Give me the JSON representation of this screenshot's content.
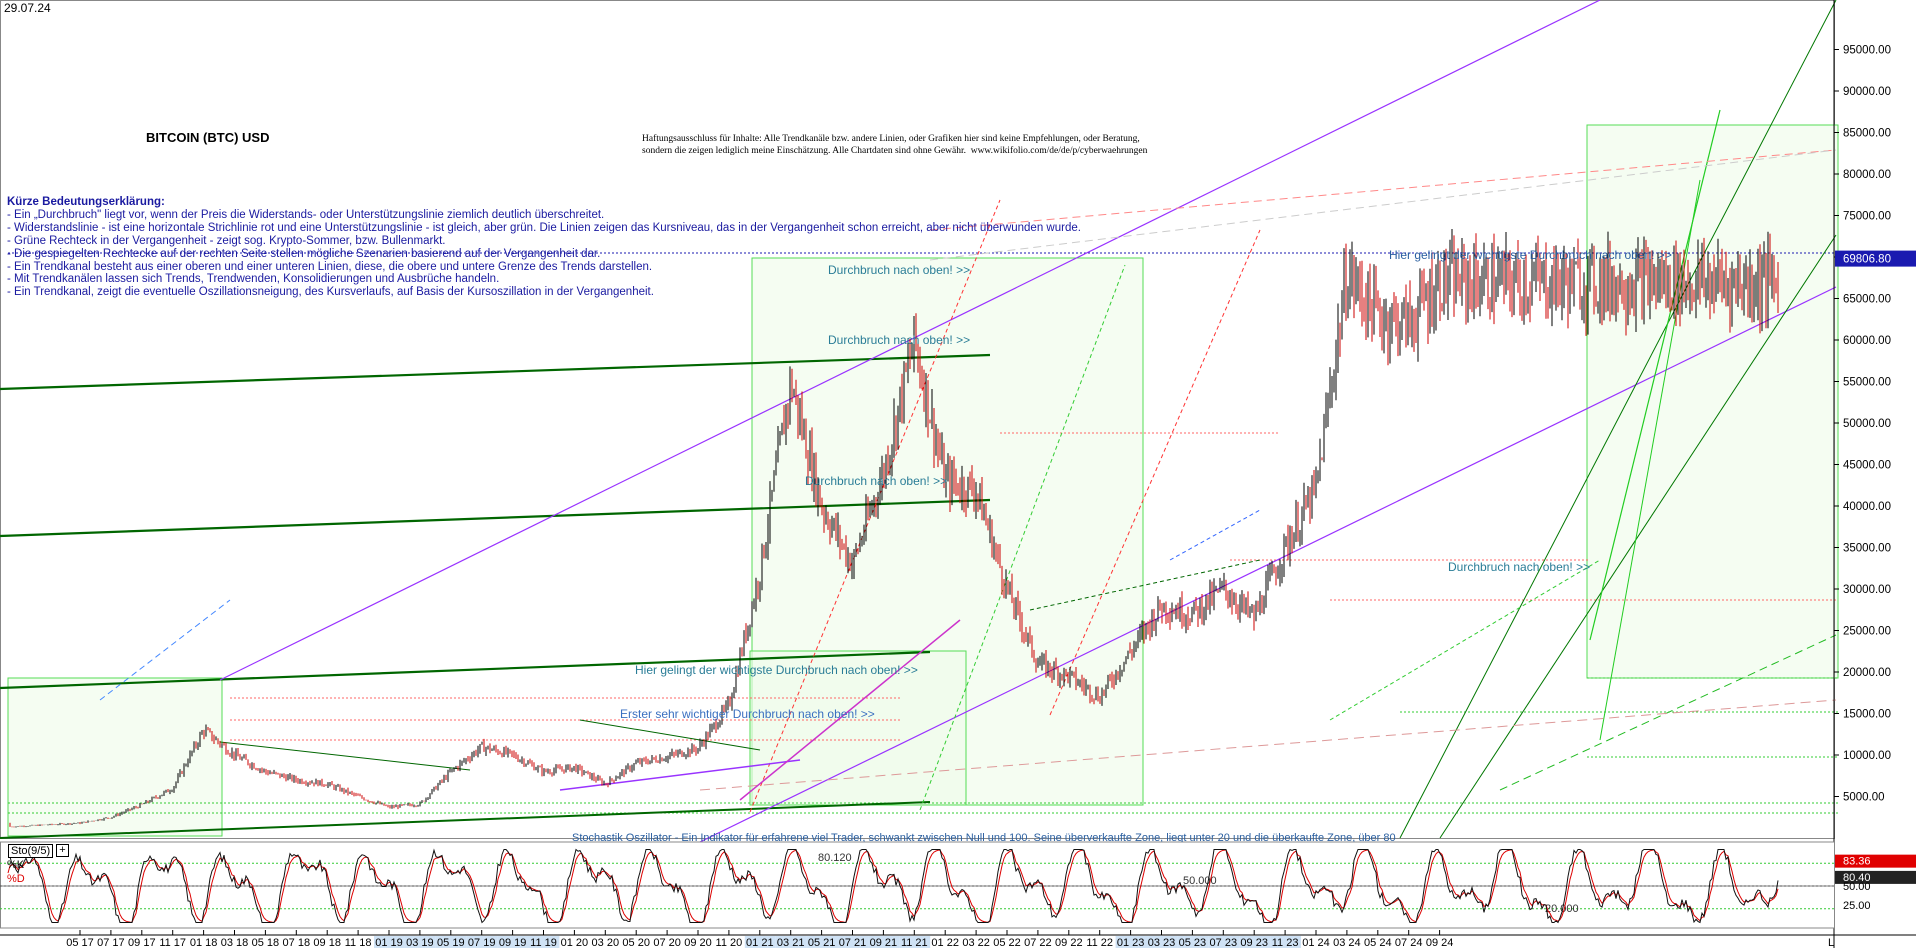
{
  "date": "29.07.24",
  "title": "BITCOIN (BTC) USD",
  "disclaimer": [
    "Haftungsausschluss für Inhalte: Alle Trendkanäle bzw. andere Linien, oder Grafiken hier sind keine Empfehlungen, oder Beratung,",
    "sondern die zeigen lediglich meine Einschätzung. Alle Chartdaten sind ohne Gewähr.  www.wikifolio.com/de/de/p/cyberwaehrungen"
  ],
  "legend": {
    "title": "Kürze Bedeutungserklärung:",
    "lines": [
      "- Ein „Durchbruch\" liegt vor, wenn der Preis die Widerstands- oder Unterstützungslinie ziemlich deutlich überschreitet.",
      "- Widerstandslinie - ist eine horizontale Strichlinie rot und eine Unterstützungslinie - ist gleich, aber grün. Die Linien zeigen das Kursniveau, das in der Vergangenheit schon erreicht, aber nicht überwunden wurde.",
      "- Grüne Rechteck in der Vergangenheit - zeigt sog. Krypto-Sommer, bzw. Bullenmarkt.",
      "- Die gespiegelten Rechtecke auf der rechten Seite stellen mögliche Szenarien basierend auf der Vergangenheit dar.",
      "- Ein Trendkanal besteht aus einer oberen und einer unteren Linien, diese, die obere und untere Grenze des Trends darstellen.",
      "- Mit Trendkanälen lassen sich Trends, Trendwenden, Konsolidierungen und Ausbrüche handeln.",
      "- Ein Trendkanal, zeigt die eventuelle Oszillationsneigung, des Kursverlaufs, auf Basis der Kursoszillation in der Vergangenheit."
    ]
  },
  "annotations": [
    "Durchbruch nach oben! >>",
    "Durchbruch nach oben! >>",
    "Durchbruch nach oben! >>",
    "Hier gelingt der wichtigste Durchbruch nach oben! >>",
    "Erster sehr wichtiger Durchbruch nach oben! >>",
    "Hier gelingt der wichtigste Durchbruch nach oben! >>",
    "Durchbruch nach oben! >>"
  ],
  "oscillator": {
    "title": "Sto(9/5)",
    "plus": "+",
    "k_label": "%K",
    "d_label": "%D",
    "description": "Stochastik Oszillator - Ein Indikator für erfahrene viel Trader, schwankt zwischen Null und 100. Seine überverkaufte Zone, liegt unter 20 und die überkaufte Zone, über 80",
    "level_80": "80.120",
    "level_50": "50.000",
    "level_20": "20.000",
    "k_value": "83.36",
    "d_value": "80.40",
    "axis_ticks": [
      "50.00",
      "25.00"
    ]
  },
  "colors": {
    "price_up": "#000000",
    "price_down": "#cc0000",
    "support": "#33cc33",
    "resistance": "#ff3333",
    "channel": "#9933ff",
    "trend_green": "#006600",
    "legend_text": "#1a1aa0",
    "annotation": "#2a7d97",
    "current_price_bg": "#1a1ab0",
    "k_bg": "#e00000"
  },
  "chart_data": {
    "type": "candlestick",
    "title": "BITCOIN (BTC) USD",
    "ylim": [
      0,
      100000
    ],
    "y_ticks": [
      "5000.00",
      "10000.00",
      "15000.00",
      "20000.00",
      "25000.00",
      "30000.00",
      "35000.00",
      "40000.00",
      "45000.00",
      "50000.00",
      "55000.00",
      "60000.00",
      "65000.00",
      "70000.00",
      "75000.00",
      "80000.00",
      "85000.00",
      "90000.00",
      "95000.00"
    ],
    "current_price": "69806.80",
    "x_ticks": [
      "05 17",
      "07 17",
      "09 17",
      "11 17",
      "01 18",
      "03 18",
      "05 18",
      "07 18",
      "09 18",
      "11 18",
      "01 19",
      "03 19",
      "05 19",
      "07 19",
      "09 19",
      "11 19",
      "01 20",
      "03 20",
      "05 20",
      "07 20",
      "09 20",
      "11 20",
      "01 21",
      "03 21",
      "05 21",
      "07 21",
      "09 21",
      "11 21",
      "01 22",
      "03 22",
      "05 22",
      "07 22",
      "09 22",
      "11 22",
      "01 23",
      "03 23",
      "05 23",
      "07 23",
      "09 23",
      "11 23",
      "01 24",
      "03 24",
      "05 24",
      "07 24",
      "09 24"
    ],
    "x_axis_end": "L",
    "series": [
      {
        "x": [
          0,
          1,
          2,
          3,
          4,
          5,
          6,
          7,
          8,
          9,
          10,
          11,
          12,
          13,
          14,
          15,
          16,
          17,
          18,
          19,
          20,
          21,
          22,
          23,
          24,
          25,
          26,
          27,
          28,
          29,
          30,
          31,
          32,
          33,
          34,
          35,
          36,
          37,
          38,
          39,
          40,
          41,
          42,
          43,
          44
        ],
        "values": [
          1800,
          2500,
          4000,
          6000,
          13000,
          10000,
          8000,
          7000,
          6500,
          5000,
          3700,
          4100,
          8000,
          11000,
          10000,
          8000,
          8500,
          6500,
          9000,
          9800,
          10800,
          16000,
          32000,
          55000,
          40000,
          33000,
          44000,
          60000,
          43000,
          42000,
          30000,
          21000,
          19500,
          17000,
          22500,
          28000,
          27000,
          30000,
          26500,
          35000,
          42000,
          68000,
          63000,
          62000,
          67000
        ]
      }
    ]
  }
}
